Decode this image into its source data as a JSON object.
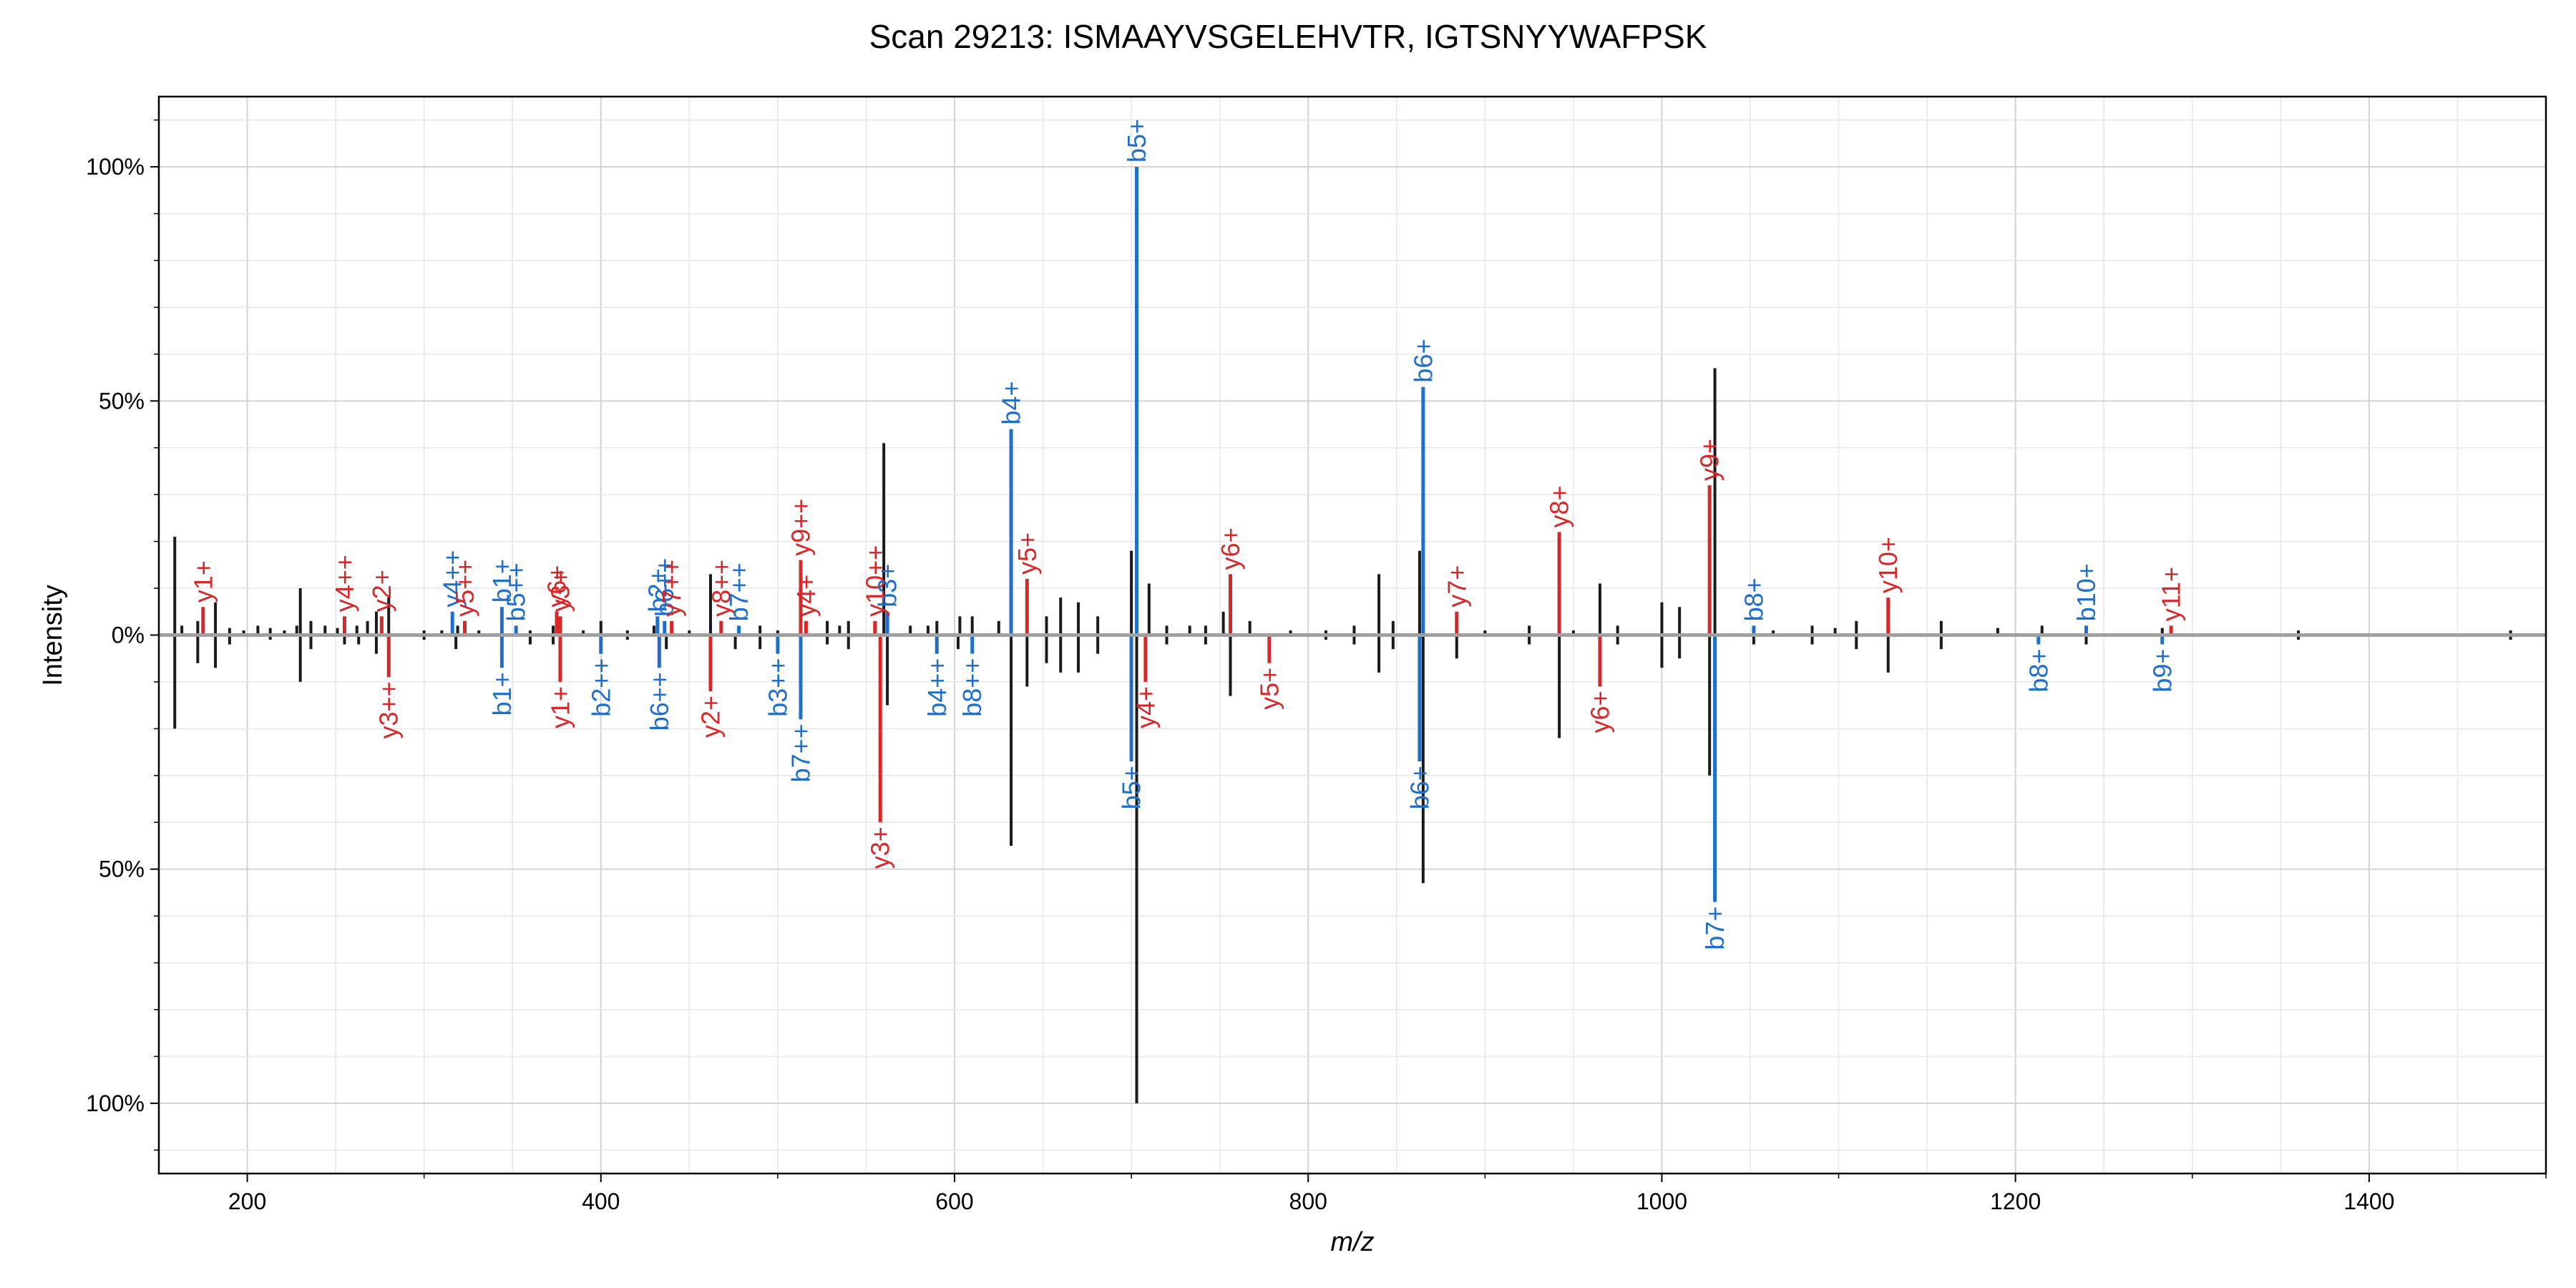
{
  "chart_data": {
    "type": "mirror-spectrum",
    "title": "Scan 29213: ISMAAYVSGELEHVTR, IGTSNYYWAFPSK",
    "xlabel": "m/z",
    "ylabel": "Intensity",
    "xlim": [
      150,
      1500
    ],
    "ylim": [
      -115,
      115
    ],
    "x_ticks": [
      200,
      400,
      600,
      800,
      1000,
      1200,
      1400
    ],
    "y_ticks": [
      {
        "value": 100,
        "label": "100%"
      },
      {
        "value": 50,
        "label": "50%"
      },
      {
        "value": 0,
        "label": "0%"
      },
      {
        "value": -50,
        "label": "50%"
      },
      {
        "value": -100,
        "label": "100%"
      }
    ],
    "grid": true,
    "colors": {
      "b_ion": "#1f6fca",
      "y_ion": "#d62828",
      "unmatched": "#1a1a1a",
      "baseline": "#a0a0a0"
    },
    "top_peaks": [
      {
        "mz": 159,
        "i": 21
      },
      {
        "mz": 163,
        "i": 2
      },
      {
        "mz": 172,
        "i": 3
      },
      {
        "mz": 175,
        "i": 6,
        "ion": "y1+",
        "type": "y"
      },
      {
        "mz": 182,
        "i": 7
      },
      {
        "mz": 190,
        "i": 1.5
      },
      {
        "mz": 198,
        "i": 1
      },
      {
        "mz": 206,
        "i": 2
      },
      {
        "mz": 213,
        "i": 1.5
      },
      {
        "mz": 221,
        "i": 1
      },
      {
        "mz": 228,
        "i": 2
      },
      {
        "mz": 230,
        "i": 10
      },
      {
        "mz": 236,
        "i": 3
      },
      {
        "mz": 244,
        "i": 2
      },
      {
        "mz": 251,
        "i": 1.5
      },
      {
        "mz": 255,
        "i": 4,
        "ion": "y4++",
        "type": "y"
      },
      {
        "mz": 262,
        "i": 2
      },
      {
        "mz": 268,
        "i": 3
      },
      {
        "mz": 273,
        "i": 5
      },
      {
        "mz": 276,
        "i": 4,
        "ion": "y2+",
        "type": "y"
      },
      {
        "mz": 280,
        "i": 8
      },
      {
        "mz": 300,
        "i": 1
      },
      {
        "mz": 310,
        "i": 1
      },
      {
        "mz": 316,
        "i": 5,
        "ion": "y4++",
        "type": "b"
      },
      {
        "mz": 319,
        "i": 2
      },
      {
        "mz": 323,
        "i": 3,
        "ion": "y5++",
        "type": "y"
      },
      {
        "mz": 331,
        "i": 1
      },
      {
        "mz": 344,
        "i": 6,
        "ion": "b1+",
        "type": "b"
      },
      {
        "mz": 352,
        "i": 2,
        "ion": "b5++",
        "type": "b"
      },
      {
        "mz": 360,
        "i": 1
      },
      {
        "mz": 373,
        "i": 2
      },
      {
        "mz": 375,
        "i": 5,
        "ion": "y6+",
        "type": "y"
      },
      {
        "mz": 377,
        "i": 4,
        "ion": "y3+",
        "type": "y"
      },
      {
        "mz": 390,
        "i": 1
      },
      {
        "mz": 400,
        "i": 3
      },
      {
        "mz": 415,
        "i": 1
      },
      {
        "mz": 430,
        "i": 2
      },
      {
        "mz": 432,
        "i": 4,
        "ion": "b2+",
        "type": "b"
      },
      {
        "mz": 436,
        "i": 3,
        "ion": "b6++",
        "type": "b"
      },
      {
        "mz": 440,
        "i": 3,
        "ion": "y7++",
        "type": "y"
      },
      {
        "mz": 450,
        "i": 1
      },
      {
        "mz": 462,
        "i": 13
      },
      {
        "mz": 468,
        "i": 3,
        "ion": "y8++",
        "type": "y"
      },
      {
        "mz": 478,
        "i": 2,
        "ion": "b7++",
        "type": "b"
      },
      {
        "mz": 490,
        "i": 2
      },
      {
        "mz": 500,
        "i": 1
      },
      {
        "mz": 513,
        "i": 16,
        "ion": "y9++",
        "type": "y"
      },
      {
        "mz": 516,
        "i": 3,
        "ion": "y4+",
        "type": "y"
      },
      {
        "mz": 528,
        "i": 3
      },
      {
        "mz": 535,
        "i": 2
      },
      {
        "mz": 540,
        "i": 3
      },
      {
        "mz": 555,
        "i": 3,
        "ion": "y10++",
        "type": "y"
      },
      {
        "mz": 560,
        "i": 41
      },
      {
        "mz": 562,
        "i": 5,
        "ion": "b3+",
        "type": "b"
      },
      {
        "mz": 575,
        "i": 2
      },
      {
        "mz": 585,
        "i": 2
      },
      {
        "mz": 590,
        "i": 3
      },
      {
        "mz": 603,
        "i": 4
      },
      {
        "mz": 610,
        "i": 4
      },
      {
        "mz": 625,
        "i": 3
      },
      {
        "mz": 632,
        "i": 44,
        "ion": "b4+",
        "type": "b"
      },
      {
        "mz": 641,
        "i": 12,
        "ion": "y5+",
        "type": "y"
      },
      {
        "mz": 652,
        "i": 4
      },
      {
        "mz": 660,
        "i": 8
      },
      {
        "mz": 670,
        "i": 7
      },
      {
        "mz": 681,
        "i": 4
      },
      {
        "mz": 700,
        "i": 18
      },
      {
        "mz": 703,
        "i": 100,
        "ion": "b5+",
        "type": "b"
      },
      {
        "mz": 710,
        "i": 11
      },
      {
        "mz": 720,
        "i": 2
      },
      {
        "mz": 733,
        "i": 2
      },
      {
        "mz": 742,
        "i": 2
      },
      {
        "mz": 752,
        "i": 5
      },
      {
        "mz": 756,
        "i": 13,
        "ion": "y6+",
        "type": "y"
      },
      {
        "mz": 767,
        "i": 3
      },
      {
        "mz": 790,
        "i": 1
      },
      {
        "mz": 810,
        "i": 1
      },
      {
        "mz": 826,
        "i": 2
      },
      {
        "mz": 840,
        "i": 13
      },
      {
        "mz": 848,
        "i": 3
      },
      {
        "mz": 863,
        "i": 18
      },
      {
        "mz": 865,
        "i": 53,
        "ion": "b6+",
        "type": "b"
      },
      {
        "mz": 884,
        "i": 5,
        "ion": "y7+",
        "type": "y"
      },
      {
        "mz": 900,
        "i": 1
      },
      {
        "mz": 925,
        "i": 2
      },
      {
        "mz": 942,
        "i": 22,
        "ion": "y8+",
        "type": "y"
      },
      {
        "mz": 950,
        "i": 1
      },
      {
        "mz": 965,
        "i": 11
      },
      {
        "mz": 975,
        "i": 2
      },
      {
        "mz": 1000,
        "i": 7
      },
      {
        "mz": 1010,
        "i": 6
      },
      {
        "mz": 1027,
        "i": 32,
        "ion": "y9+",
        "type": "y"
      },
      {
        "mz": 1030,
        "i": 57
      },
      {
        "mz": 1052,
        "i": 2,
        "ion": "b8+",
        "type": "b"
      },
      {
        "mz": 1063,
        "i": 1
      },
      {
        "mz": 1085,
        "i": 2
      },
      {
        "mz": 1098,
        "i": 1.5
      },
      {
        "mz": 1110,
        "i": 3
      },
      {
        "mz": 1128,
        "i": 8,
        "ion": "y10+",
        "type": "y"
      },
      {
        "mz": 1158,
        "i": 3
      },
      {
        "mz": 1190,
        "i": 1.5
      },
      {
        "mz": 1215,
        "i": 2
      },
      {
        "mz": 1240,
        "i": 2,
        "ion": "b10+",
        "type": "b"
      },
      {
        "mz": 1283,
        "i": 1.5
      },
      {
        "mz": 1288,
        "i": 2,
        "ion": "y11+",
        "type": "y"
      },
      {
        "mz": 1360,
        "i": 1
      },
      {
        "mz": 1480,
        "i": 1
      }
    ],
    "bottom_peaks": [
      {
        "mz": 159,
        "i": 20
      },
      {
        "mz": 172,
        "i": 6
      },
      {
        "mz": 182,
        "i": 7
      },
      {
        "mz": 190,
        "i": 2
      },
      {
        "mz": 213,
        "i": 1
      },
      {
        "mz": 230,
        "i": 10
      },
      {
        "mz": 236,
        "i": 3
      },
      {
        "mz": 255,
        "i": 2
      },
      {
        "mz": 263,
        "i": 2
      },
      {
        "mz": 273,
        "i": 4
      },
      {
        "mz": 280,
        "i": 9,
        "ion": "y3++",
        "type": "y"
      },
      {
        "mz": 300,
        "i": 1
      },
      {
        "mz": 318,
        "i": 3
      },
      {
        "mz": 344,
        "i": 7,
        "ion": "b1+",
        "type": "b"
      },
      {
        "mz": 360,
        "i": 2
      },
      {
        "mz": 373,
        "i": 2
      },
      {
        "mz": 377,
        "i": 10,
        "ion": "y1+",
        "type": "y"
      },
      {
        "mz": 400,
        "i": 4,
        "ion": "b2++",
        "type": "b"
      },
      {
        "mz": 415,
        "i": 1
      },
      {
        "mz": 433,
        "i": 7,
        "ion": "b6++",
        "type": "b"
      },
      {
        "mz": 437,
        "i": 3
      },
      {
        "mz": 462,
        "i": 12,
        "ion": "y2+",
        "type": "y"
      },
      {
        "mz": 476,
        "i": 3
      },
      {
        "mz": 490,
        "i": 3
      },
      {
        "mz": 500,
        "i": 4,
        "ion": "b3++",
        "type": "b"
      },
      {
        "mz": 513,
        "i": 18,
        "ion": "b7++",
        "type": "b"
      },
      {
        "mz": 528,
        "i": 2
      },
      {
        "mz": 540,
        "i": 3
      },
      {
        "mz": 558,
        "i": 40,
        "ion": "y3+",
        "type": "y"
      },
      {
        "mz": 562,
        "i": 15
      },
      {
        "mz": 590,
        "i": 4,
        "ion": "b4++",
        "type": "b"
      },
      {
        "mz": 602,
        "i": 3
      },
      {
        "mz": 610,
        "i": 4,
        "ion": "b8++",
        "type": "b"
      },
      {
        "mz": 632,
        "i": 45
      },
      {
        "mz": 641,
        "i": 11
      },
      {
        "mz": 652,
        "i": 6
      },
      {
        "mz": 660,
        "i": 8
      },
      {
        "mz": 670,
        "i": 8
      },
      {
        "mz": 681,
        "i": 4
      },
      {
        "mz": 700,
        "i": 27,
        "ion": "b5+",
        "type": "b"
      },
      {
        "mz": 703,
        "i": 100
      },
      {
        "mz": 708,
        "i": 10,
        "ion": "y4+",
        "type": "y"
      },
      {
        "mz": 720,
        "i": 2
      },
      {
        "mz": 742,
        "i": 2
      },
      {
        "mz": 756,
        "i": 13
      },
      {
        "mz": 778,
        "i": 6,
        "ion": "y5+",
        "type": "y"
      },
      {
        "mz": 810,
        "i": 1
      },
      {
        "mz": 826,
        "i": 2
      },
      {
        "mz": 840,
        "i": 8
      },
      {
        "mz": 848,
        "i": 3
      },
      {
        "mz": 863,
        "i": 27,
        "ion": "b6+",
        "type": "b"
      },
      {
        "mz": 865,
        "i": 53
      },
      {
        "mz": 884,
        "i": 5
      },
      {
        "mz": 925,
        "i": 2
      },
      {
        "mz": 942,
        "i": 22
      },
      {
        "mz": 965,
        "i": 11,
        "ion": "y6+",
        "type": "y"
      },
      {
        "mz": 975,
        "i": 2
      },
      {
        "mz": 1000,
        "i": 7
      },
      {
        "mz": 1010,
        "i": 5
      },
      {
        "mz": 1027,
        "i": 30
      },
      {
        "mz": 1030,
        "i": 57,
        "ion": "b7+",
        "type": "b"
      },
      {
        "mz": 1052,
        "i": 2
      },
      {
        "mz": 1085,
        "i": 2
      },
      {
        "mz": 1110,
        "i": 3
      },
      {
        "mz": 1128,
        "i": 8
      },
      {
        "mz": 1158,
        "i": 3
      },
      {
        "mz": 1213,
        "i": 2,
        "ion": "b8+",
        "type": "b"
      },
      {
        "mz": 1240,
        "i": 2
      },
      {
        "mz": 1283,
        "i": 2,
        "ion": "b9+",
        "type": "b"
      },
      {
        "mz": 1360,
        "i": 1
      },
      {
        "mz": 1480,
        "i": 1
      }
    ]
  }
}
